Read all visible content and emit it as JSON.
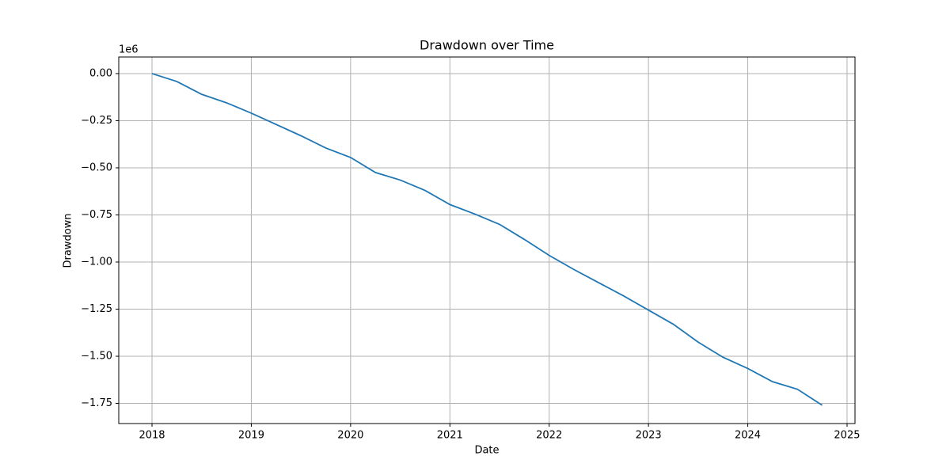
{
  "chart_data": {
    "type": "line",
    "title": "Drawdown over Time",
    "x_label": "Date",
    "y_label": "Drawdown",
    "y_offset_label": "1e6",
    "x": [
      2018.0,
      2018.25,
      2018.5,
      2018.75,
      2019.0,
      2019.25,
      2019.5,
      2019.75,
      2020.0,
      2020.25,
      2020.5,
      2020.75,
      2021.0,
      2021.25,
      2021.5,
      2021.75,
      2022.0,
      2022.25,
      2022.5,
      2022.75,
      2023.0,
      2023.25,
      2023.5,
      2023.75,
      2024.0,
      2024.25,
      2024.5,
      2024.75
    ],
    "series": [
      {
        "name": "Drawdown",
        "color": "#1f77b4",
        "values": [
          0,
          -42000,
          -110000,
          -155000,
          -210000,
          -270000,
          -330000,
          -395000,
          -445000,
          -525000,
          -565000,
          -620000,
          -695000,
          -745000,
          -800000,
          -880000,
          -965000,
          -1040000,
          -1110000,
          -1180000,
          -1255000,
          -1330000,
          -1425000,
          -1505000,
          -1565000,
          -1635000,
          -1675000,
          -1760000
        ]
      }
    ],
    "xlim": [
      2017.665,
      2025.08
    ],
    "xticks": [
      2018,
      2019,
      2020,
      2021,
      2022,
      2023,
      2024,
      2025
    ],
    "ylim": [
      -1857000,
      88000
    ],
    "yticks": [
      {
        "value": 0,
        "label": "0.00"
      },
      {
        "value": -250000,
        "label": "−0.25"
      },
      {
        "value": -500000,
        "label": "−0.50"
      },
      {
        "value": -750000,
        "label": "−0.75"
      },
      {
        "value": -1000000,
        "label": "−1.00"
      },
      {
        "value": -1250000,
        "label": "−1.25"
      },
      {
        "value": -1500000,
        "label": "−1.50"
      },
      {
        "value": -1750000,
        "label": "−1.75"
      }
    ],
    "grid": true
  }
}
